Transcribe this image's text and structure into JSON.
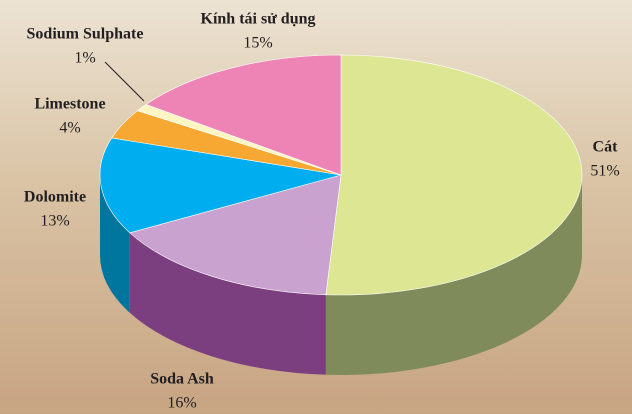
{
  "chart_data": {
    "type": "pie3d",
    "categories": [
      "Cát",
      "Soda Ash",
      "Dolomite",
      "Limestone",
      "Sodium Sulphate",
      "Kính tái sử dụng"
    ],
    "values": [
      51,
      16,
      13,
      4,
      1,
      15
    ],
    "value_labels": [
      "51%",
      "16%",
      "13%",
      "4%",
      "1%",
      "15%"
    ],
    "colors": [
      "#dde692",
      "#c9a2d0",
      "#00aeef",
      "#f7a832",
      "#fdf6c3",
      "#ee84b5"
    ],
    "side_colors": [
      "#7f8b5b",
      "#7b3f7f",
      "#00759d",
      "#b8761d",
      "#c9c08a",
      "#a8527d"
    ]
  }
}
